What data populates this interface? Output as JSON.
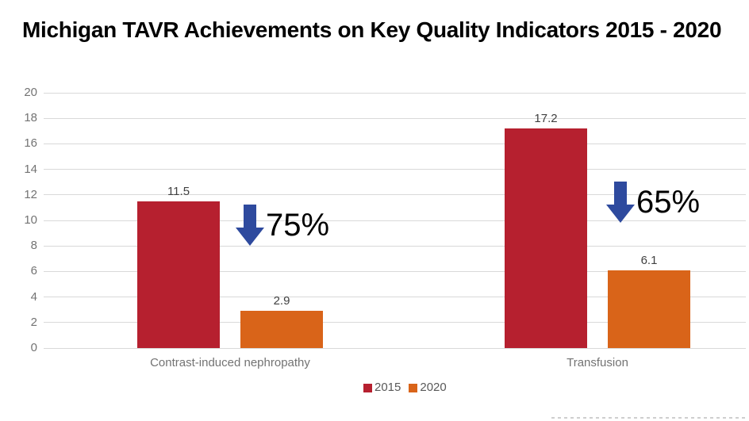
{
  "chart_data": {
    "type": "bar",
    "title": "Michigan TAVR Achievements on Key Quality Indicators 2015 - 2020",
    "categories": [
      "Contrast-induced nephropathy",
      "Transfusion"
    ],
    "series": [
      {
        "name": "2015",
        "color": "#b6202f",
        "values": [
          11.5,
          17.2
        ]
      },
      {
        "name": "2020",
        "color": "#d96419",
        "values": [
          2.9,
          6.1
        ]
      }
    ],
    "annotations": [
      {
        "icon": "down-arrow",
        "text": "75%",
        "color": "#2e4a9e"
      },
      {
        "icon": "down-arrow",
        "text": "65%",
        "color": "#2e4a9e"
      }
    ],
    "ylim": [
      0,
      20
    ],
    "yticks": [
      0,
      2,
      4,
      6,
      8,
      10,
      12,
      14,
      16,
      18,
      20
    ],
    "grid": true,
    "legend_position": "bottom",
    "colors": {
      "gridline": "#d9d9d9",
      "axis_text": "#737373",
      "data_label": "#404040",
      "legend_text": "#595959",
      "arrow": "#2e4a9e"
    }
  }
}
